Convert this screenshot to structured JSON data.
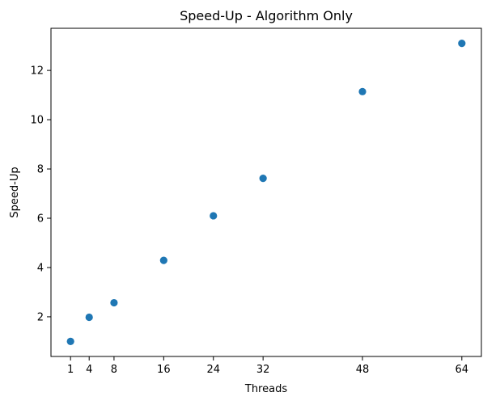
{
  "chart_data": {
    "type": "scatter",
    "title": "Speed-Up - Algorithm Only",
    "xlabel": "Threads",
    "ylabel": "Speed-Up",
    "x": [
      1,
      4,
      8,
      16,
      24,
      32,
      48,
      64
    ],
    "y": [
      1.0,
      1.98,
      2.57,
      4.29,
      6.1,
      7.62,
      11.14,
      13.1
    ],
    "xticks": [
      1,
      4,
      8,
      16,
      24,
      32,
      48,
      64
    ],
    "yticks": [
      2,
      4,
      6,
      8,
      10,
      12
    ],
    "xlim": [
      -2.15,
      67.15
    ],
    "ylim": [
      0.39,
      13.71
    ],
    "grid": false,
    "marker_color": "#1f77b4"
  }
}
